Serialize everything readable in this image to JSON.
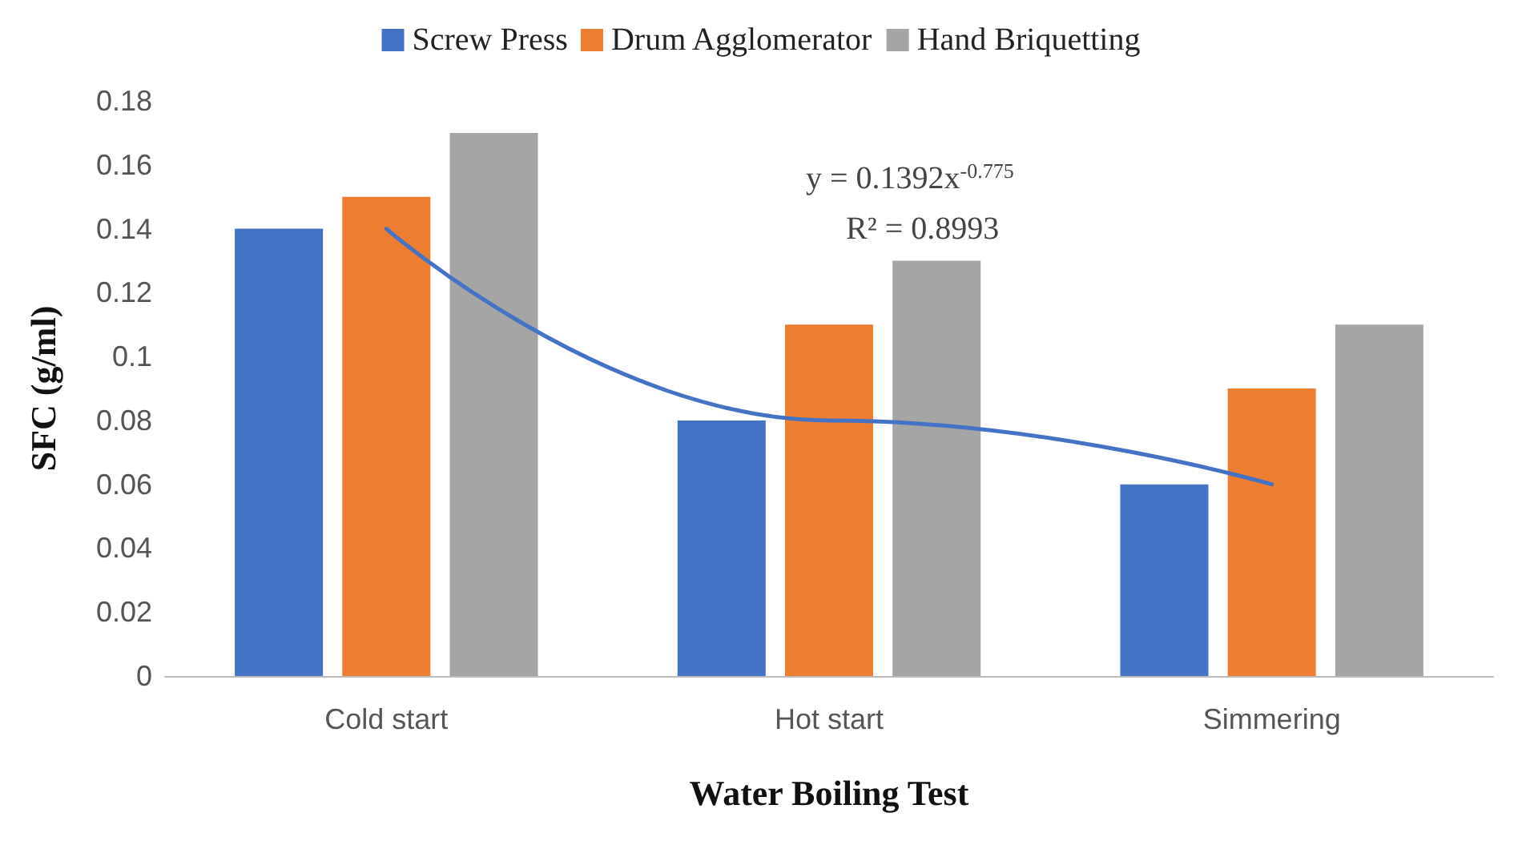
{
  "chart_data": {
    "type": "bar",
    "xlabel": "Water Boiling Test",
    "ylabel": "SFC (g/ml)",
    "categories": [
      "Cold start",
      "Hot start",
      "Simmering"
    ],
    "series": [
      {
        "name": "Screw Press",
        "color": "#4472c4",
        "values": [
          0.14,
          0.08,
          0.06
        ]
      },
      {
        "name": "Drum Agglomerator",
        "color": "#ed7d31",
        "values": [
          0.15,
          0.11,
          0.09
        ]
      },
      {
        "name": "Hand Briquetting",
        "color": "#a5a5a5",
        "values": [
          0.17,
          0.13,
          0.11
        ]
      },
      {
        "type": "line",
        "color": "#4472c4",
        "x": [
          "Cold start",
          "Hot start",
          "Simmering"
        ],
        "values": [
          0.14,
          0.08,
          0.06
        ],
        "marker": "none"
      }
    ],
    "ylim": [
      0,
      0.18
    ],
    "yticks": [
      0,
      0.02,
      0.04,
      0.06,
      0.08,
      0.1,
      0.12,
      0.14,
      0.16,
      0.18
    ],
    "grid": false,
    "legend": "top",
    "annotations": [
      "y = 0.1392x$^{-0.775}$",
      "R² = 0.8993"
    ]
  }
}
